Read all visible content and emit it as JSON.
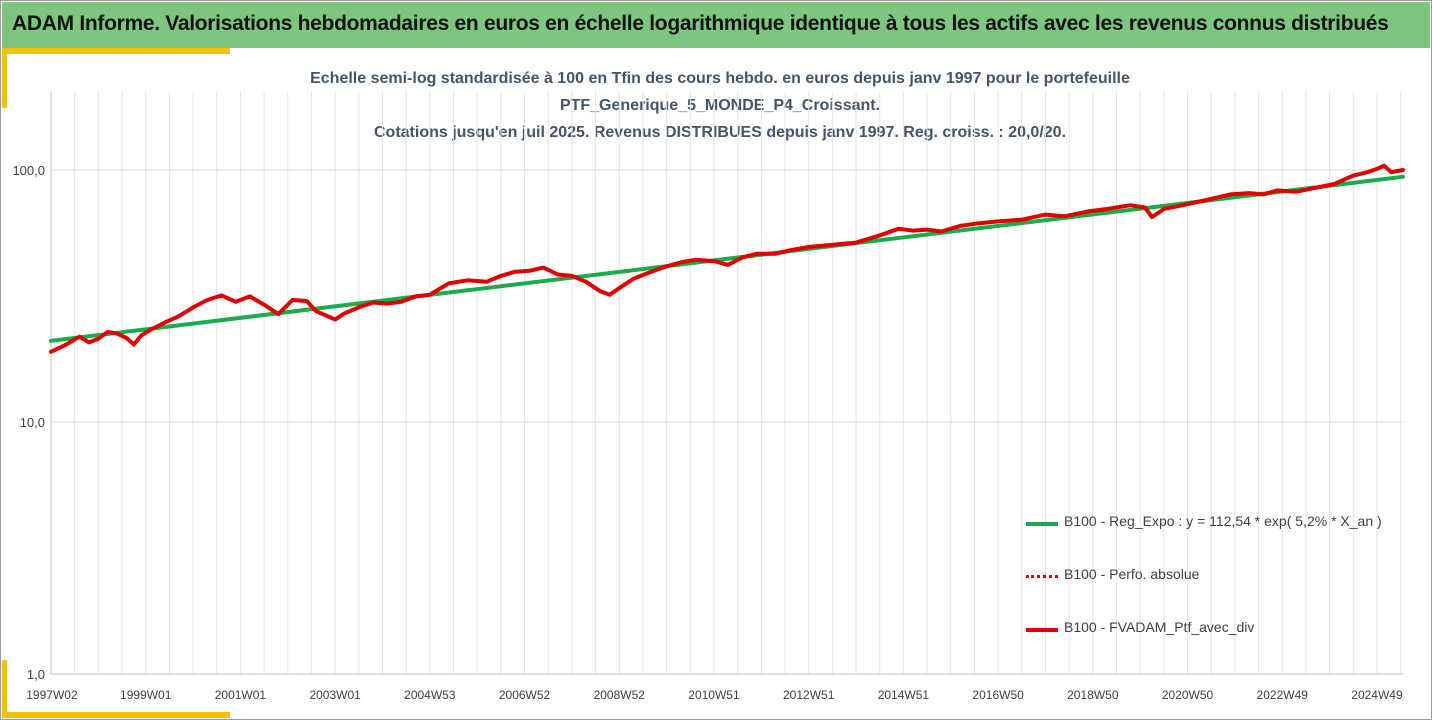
{
  "header": {
    "title": "ADAM Informe. Valorisations hebdomadaires en euros en échelle logarithmique identique à tous les actifs avec les revenus connus distribués"
  },
  "chart_data": {
    "type": "line",
    "title_lines": [
      "Echelle semi-log standardisée à 100 en Tfin des cours hebdo.  en euros depuis janv 1997 pour le portefeuille",
      "PTF_Generique_5_MONDE_P4_Croissant.",
      "Cotations  jusqu'en juil 2025. Revenus DISTRIBUES depuis janv 1997. Reg. croiss. : 20,0/20."
    ],
    "y_scale": "log",
    "ylim": [
      1,
      200
    ],
    "y_ticks": [
      "1,0",
      "10,0",
      "100,0"
    ],
    "x_start": 1997.0,
    "x_end": 2025.55,
    "x_ticks": [
      {
        "label": "1997W02",
        "x": 1997.02
      },
      {
        "label": "1999W01",
        "x": 1999.0
      },
      {
        "label": "2001W01",
        "x": 2001.0
      },
      {
        "label": "2003W01",
        "x": 2003.0
      },
      {
        "label": "2004W53",
        "x": 2005.0
      },
      {
        "label": "2006W52",
        "x": 2007.0
      },
      {
        "label": "2008W52",
        "x": 2009.0
      },
      {
        "label": "2010W51",
        "x": 2011.0
      },
      {
        "label": "2012W51",
        "x": 2013.0
      },
      {
        "label": "2014W51",
        "x": 2015.0
      },
      {
        "label": "2016W50",
        "x": 2017.0
      },
      {
        "label": "2018W50",
        "x": 2019.0
      },
      {
        "label": "2020W50",
        "x": 2021.0
      },
      {
        "label": "2022W49",
        "x": 2023.0
      },
      {
        "label": "2024W49",
        "x": 2025.0
      }
    ],
    "grid": true,
    "legend_position": "bottom-right",
    "series": [
      {
        "name": "B100 - Reg_Expo : y = 112,54 * exp( 5,2% *  X_an )",
        "color": "#1aab4b",
        "style": "solid",
        "x": [
          1997.0,
          2025.55
        ],
        "values": [
          21.0,
          94.0
        ]
      },
      {
        "name": "B100 - Perfo. absolue",
        "color": "#e00000",
        "style": "dotted",
        "x": [],
        "values": []
      },
      {
        "name": "B100 - FVADAM_Ptf_avec_div",
        "color": "#e00000",
        "style": "solid",
        "x": [
          1997.0,
          1997.3,
          1997.6,
          1997.8,
          1998.0,
          1998.2,
          1998.4,
          1998.6,
          1998.75,
          1998.9,
          1999.1,
          1999.4,
          1999.7,
          2000.0,
          2000.3,
          2000.6,
          2000.9,
          2001.2,
          2001.5,
          2001.8,
          2002.1,
          2002.4,
          2002.6,
          2002.8,
          2003.0,
          2003.2,
          2003.5,
          2003.8,
          2004.1,
          2004.4,
          2004.7,
          2005.0,
          2005.4,
          2005.8,
          2006.2,
          2006.5,
          2006.8,
          2007.1,
          2007.4,
          2007.7,
          2008.0,
          2008.3,
          2008.6,
          2008.8,
          2009.1,
          2009.3,
          2009.6,
          2010.0,
          2010.3,
          2010.6,
          2011.0,
          2011.3,
          2011.6,
          2011.9,
          2012.3,
          2012.6,
          2013.0,
          2013.5,
          2014.0,
          2014.5,
          2014.9,
          2015.2,
          2015.5,
          2015.8,
          2016.2,
          2016.6,
          2017.0,
          2017.5,
          2018.0,
          2018.4,
          2018.9,
          2019.3,
          2019.8,
          2020.1,
          2020.25,
          2020.5,
          2020.9,
          2021.4,
          2021.9,
          2022.3,
          2022.6,
          2022.9,
          2023.3,
          2023.7,
          2024.1,
          2024.5,
          2024.8,
          2025.0,
          2025.15,
          2025.3,
          2025.55
        ],
        "values": [
          19.0,
          20.2,
          21.8,
          20.7,
          21.4,
          22.8,
          22.4,
          21.5,
          20.3,
          22.0,
          23.2,
          24.8,
          26.3,
          28.5,
          30.5,
          31.8,
          30.0,
          31.5,
          29.2,
          26.8,
          30.5,
          30.2,
          27.5,
          26.5,
          25.5,
          27.0,
          28.5,
          29.8,
          29.5,
          30.0,
          31.5,
          32.0,
          35.5,
          36.5,
          36.0,
          38.0,
          39.5,
          39.8,
          41.0,
          38.5,
          38.0,
          36.0,
          33.0,
          32.0,
          35.0,
          37.0,
          39.0,
          41.5,
          43.0,
          44.0,
          43.5,
          42.0,
          45.0,
          46.5,
          46.5,
          48.0,
          49.5,
          50.5,
          51.5,
          55.0,
          58.5,
          57.5,
          58.0,
          57.0,
          60.0,
          61.5,
          62.5,
          63.5,
          66.5,
          65.5,
          68.5,
          70.0,
          72.5,
          71.0,
          65.0,
          70.0,
          72.5,
          76.0,
          80.0,
          81.0,
          80.0,
          83.0,
          82.0,
          85.0,
          88.0,
          95.0,
          98.0,
          101.0,
          104.0,
          98.0,
          100.0
        ]
      }
    ]
  }
}
